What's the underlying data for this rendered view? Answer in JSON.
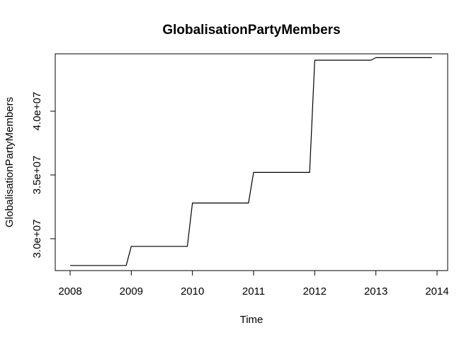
{
  "chart_data": {
    "type": "line",
    "title": "GlobalisationPartyMembers",
    "xlabel": "Time",
    "ylabel": "GlobalisationPartyMembers",
    "xlim": [
      2008,
      2014
    ],
    "ylim": [
      27500000,
      44500000
    ],
    "x_ticks": [
      2008,
      2009,
      2010,
      2011,
      2012,
      2013,
      2014
    ],
    "x_tick_labels": [
      "2008",
      "2009",
      "2010",
      "2011",
      "2012",
      "2013",
      "2014"
    ],
    "y_ticks": [
      30000000,
      35000000,
      40000000
    ],
    "y_tick_labels": [
      "3.0e+07",
      "3.5e+07",
      "4.0e+07"
    ],
    "grid": false,
    "legend": "none",
    "line_color": "#000000",
    "series": [
      {
        "x": [
          2008.0,
          2008.9167,
          2009.0,
          2009.9167,
          2010.0,
          2010.9167,
          2011.0,
          2011.9167,
          2012.0,
          2012.9167,
          2013.0,
          2013.9167
        ],
        "values": [
          27900000,
          27900000,
          29400000,
          29400000,
          32800000,
          32800000,
          35200000,
          35200000,
          44000000,
          44000000,
          44200000,
          44200000
        ]
      }
    ]
  }
}
